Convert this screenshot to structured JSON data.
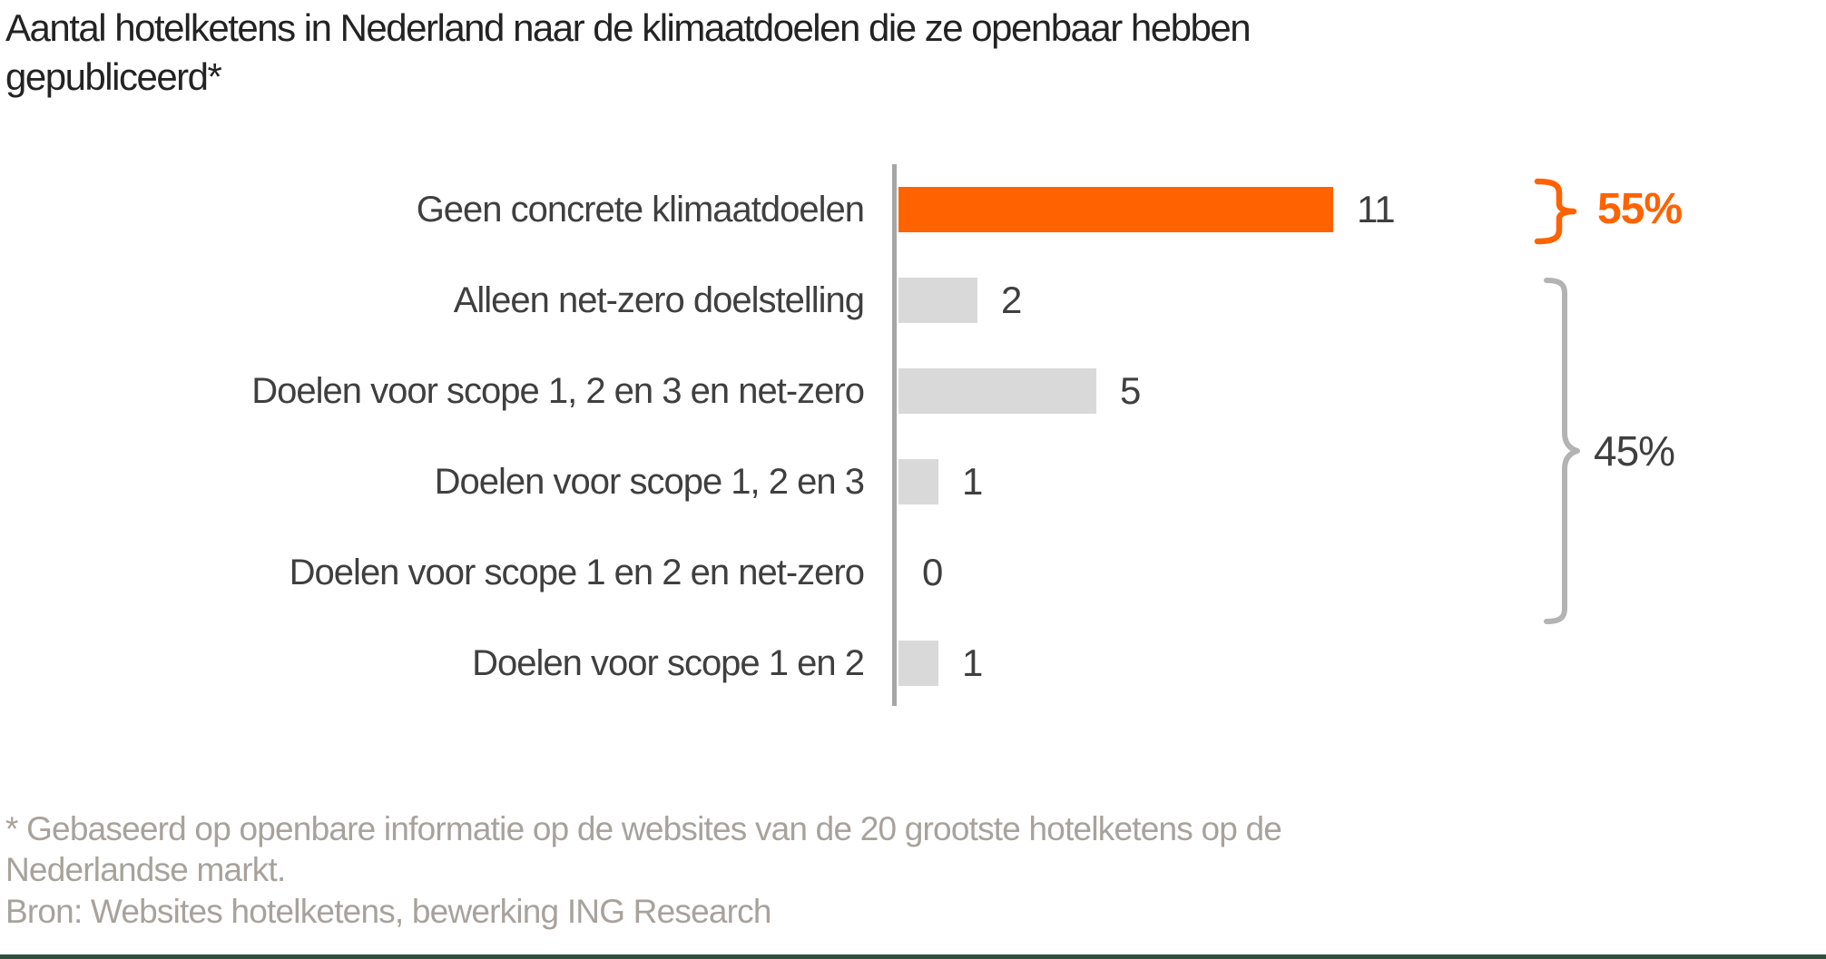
{
  "title": "Aantal hotelketens in Nederland naar de klimaatdoelen die ze openbaar hebben gepubliceerd*",
  "chart_data": {
    "type": "bar",
    "orientation": "horizontal",
    "title": "Aantal hotelketens in Nederland naar de klimaatdoelen die ze openbaar hebben gepubliceerd*",
    "categories": [
      "Geen concrete klimaatdoelen",
      "Alleen net-zero doelstelling",
      "Doelen voor scope 1, 2 en 3 en net-zero",
      "Doelen voor scope 1, 2 en 3",
      "Doelen voor scope 1 en 2 en net-zero",
      "Doelen voor scope 1 en 2"
    ],
    "values": [
      11,
      2,
      5,
      1,
      0,
      1
    ],
    "bar_colors": [
      "#ff6200",
      "#d9d9d9",
      "#d9d9d9",
      "#d9d9d9",
      "#d9d9d9",
      "#d9d9d9"
    ],
    "xlim": [
      0,
      12
    ],
    "grid": false,
    "legend": false,
    "annotations": [
      {
        "label": "55%",
        "color": "#ff6200",
        "covers_categories": [
          "Geen concrete klimaatdoelen"
        ]
      },
      {
        "label": "45%",
        "color": "#3f3f3f",
        "covers_categories": [
          "Alleen net-zero doelstelling",
          "Doelen voor scope 1, 2 en 3 en net-zero",
          "Doelen voor scope 1, 2 en 3",
          "Doelen voor scope 1 en 2 en net-zero",
          "Doelen voor scope 1 en 2"
        ]
      }
    ]
  },
  "footnote": "* Gebaseerd op openbare informatie op de websites van de 20 grootste hotelketens op de Nederlandse markt.",
  "source": "Bron: Websites hotelketens, bewerking ING Research",
  "colors": {
    "accent_orange": "#ff6200",
    "bar_gray": "#d9d9d9",
    "axis_gray": "#a6a6a6",
    "brace_gray": "#b3b3b3",
    "text_dark": "#3f3f3f",
    "footnote_gray": "#a8a29c",
    "bottom_rule": "#30503e"
  }
}
